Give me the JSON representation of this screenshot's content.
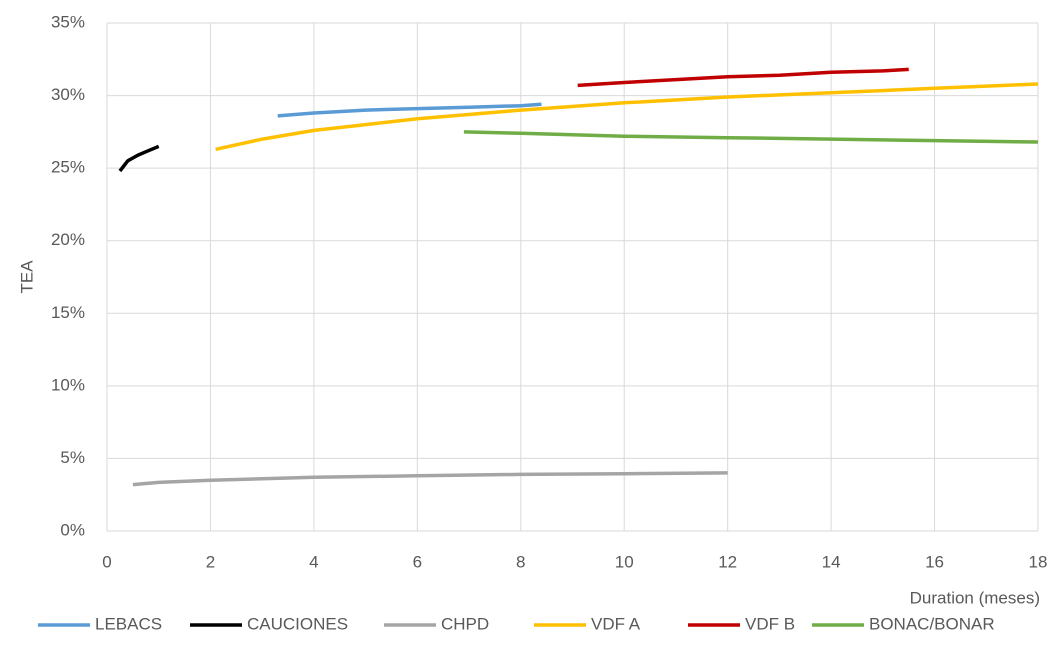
{
  "chart_data": {
    "type": "line",
    "xlabel": "Duration (meses)",
    "ylabel": "TEA",
    "xlim": [
      0,
      18
    ],
    "xticks": [
      0,
      2,
      4,
      6,
      8,
      10,
      12,
      14,
      16,
      18
    ],
    "ylim": [
      0,
      35
    ],
    "yticks": [
      {
        "value": 0,
        "label": "0%"
      },
      {
        "value": 5,
        "label": "5%"
      },
      {
        "value": 10,
        "label": "10%"
      },
      {
        "value": 15,
        "label": "15%"
      },
      {
        "value": 20,
        "label": "20%"
      },
      {
        "value": 25,
        "label": "25%"
      },
      {
        "value": 30,
        "label": "30%"
      },
      {
        "value": 35,
        "label": "35%"
      }
    ],
    "grid": true,
    "legend": "bottom",
    "series": [
      {
        "name": "LEBACS",
        "color": "#5b9bd5",
        "x": [
          3.3,
          4,
          5,
          6,
          7,
          8,
          8.4
        ],
        "values": [
          28.6,
          28.8,
          29.0,
          29.1,
          29.2,
          29.3,
          29.4
        ]
      },
      {
        "name": "CAUCIONES",
        "color": "#000000",
        "x": [
          0.25,
          0.4,
          0.6,
          0.8,
          1.0
        ],
        "values": [
          24.8,
          25.5,
          25.9,
          26.2,
          26.5
        ]
      },
      {
        "name": "CHPD",
        "color": "#a5a5a5",
        "x": [
          0.5,
          1,
          2,
          4,
          6,
          8,
          10,
          12
        ],
        "values": [
          3.2,
          3.35,
          3.5,
          3.7,
          3.8,
          3.9,
          3.95,
          4.0
        ]
      },
      {
        "name": "VDF A",
        "color": "#ffc000",
        "x": [
          2.1,
          3,
          4,
          6,
          8,
          10,
          12,
          14,
          16,
          18
        ],
        "values": [
          26.3,
          27.0,
          27.6,
          28.4,
          29.0,
          29.5,
          29.9,
          30.2,
          30.5,
          30.8
        ]
      },
      {
        "name": "VDF B",
        "color": "#c00000",
        "x": [
          9.1,
          10,
          11,
          12,
          13,
          14,
          15,
          15.5
        ],
        "values": [
          30.7,
          30.9,
          31.1,
          31.3,
          31.4,
          31.6,
          31.7,
          31.8
        ]
      },
      {
        "name": "BONAC/BONAR",
        "color": "#70ad47",
        "x": [
          6.9,
          8,
          10,
          12,
          14,
          16,
          18
        ],
        "values": [
          27.5,
          27.4,
          27.2,
          27.1,
          27.0,
          26.9,
          26.8
        ]
      }
    ]
  }
}
